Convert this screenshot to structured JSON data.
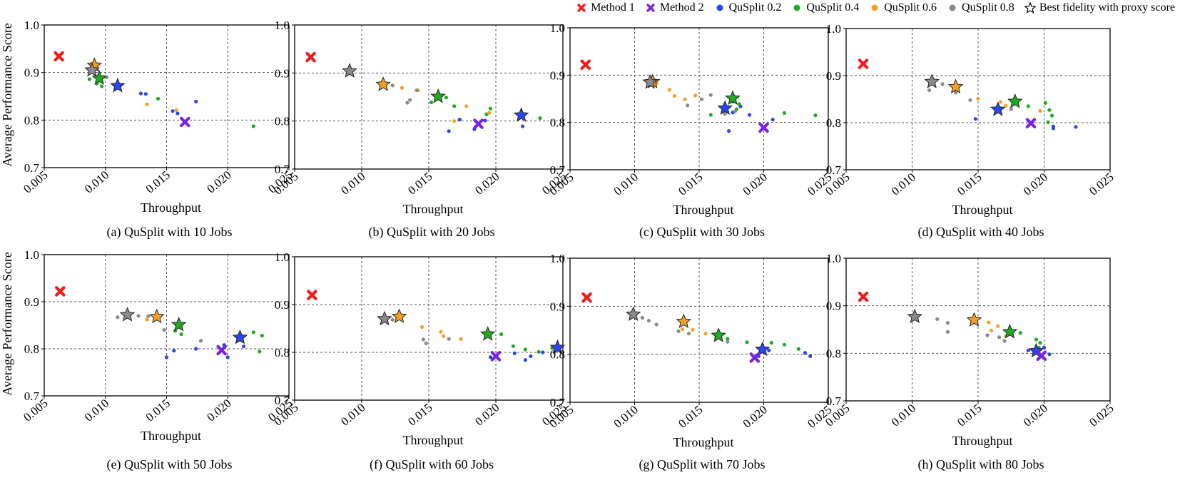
{
  "legend": {
    "items": [
      {
        "label": "Method 1",
        "color": "#f01c1c",
        "marker": "x"
      },
      {
        "label": "Method 2",
        "color": "#7b22e0",
        "marker": "x"
      },
      {
        "label": "QuSplit 0.2",
        "color": "#2a47ee",
        "marker": "dot"
      },
      {
        "label": "QuSplit 0.4",
        "color": "#20aa20",
        "marker": "dot"
      },
      {
        "label": "QuSplit 0.6",
        "color": "#f5a023",
        "marker": "dot"
      },
      {
        "label": "QuSplit 0.8",
        "color": "#8a8a8a",
        "marker": "dot"
      },
      {
        "label": "Best fidelity with proxy score",
        "color": "#ffffff",
        "marker": "star"
      }
    ]
  },
  "chart_data": [
    {
      "type": "scatter",
      "caption": "(a) QuSplit with 10 Jobs",
      "xlabel": "Throughput",
      "ylabel": "Average Performance Score",
      "xlim": [
        0.005,
        0.025
      ],
      "ylim": [
        0.7,
        1.0
      ],
      "xticks": [
        "0.005",
        "0.010",
        "0.015",
        "0.020",
        "0.025"
      ],
      "yticks": [
        "0.7",
        "0.8",
        "0.9",
        "1.0"
      ],
      "grid": true,
      "method1": [
        0.0062,
        0.934
      ],
      "method2": [
        0.0165,
        0.796
      ],
      "series": [
        {
          "name": "QuSplit 0.2",
          "x": [
            0.0129,
            0.0133,
            0.0155,
            0.0159,
            0.0174
          ],
          "y": [
            0.856,
            0.855,
            0.819,
            0.814,
            0.839
          ],
          "best": [
            0.011,
            0.872
          ]
        },
        {
          "name": "QuSplit 0.4",
          "x": [
            0.0087,
            0.0093,
            0.0097,
            0.0143,
            0.0221
          ],
          "y": [
            0.886,
            0.877,
            0.871,
            0.845,
            0.787
          ],
          "best": [
            0.0095,
            0.888
          ]
        },
        {
          "name": "QuSplit 0.6",
          "x": [
            0.0099,
            0.0134,
            0.0158
          ],
          "y": [
            0.891,
            0.833,
            0.821
          ],
          "best": [
            0.0091,
            0.915
          ]
        },
        {
          "name": "QuSplit 0.8",
          "x": [
            0.0096,
            0.0101
          ],
          "y": [
            0.883,
            0.89
          ],
          "best": [
            0.0089,
            0.905
          ]
        }
      ]
    },
    {
      "type": "scatter",
      "caption": "(b) QuSplit with 20 Jobs",
      "xlabel": "Throughput",
      "ylabel": "",
      "xlim": [
        0.005,
        0.025
      ],
      "ylim": [
        0.7,
        1.0
      ],
      "xticks": [
        "0.005",
        "0.010",
        "0.015",
        "0.020",
        "0.025"
      ],
      "yticks": [
        "0.7",
        "0.8",
        "0.9",
        "1.0"
      ],
      "grid": true,
      "method1": [
        0.0062,
        0.933
      ],
      "method2": [
        0.0187,
        0.794
      ],
      "series": [
        {
          "name": "QuSplit 0.2",
          "x": [
            0.0165,
            0.0173,
            0.0184,
            0.0192,
            0.022
          ],
          "y": [
            0.779,
            0.803,
            0.783,
            0.801,
            0.789
          ],
          "best": [
            0.0219,
            0.812
          ]
        },
        {
          "name": "QuSplit 0.4",
          "x": [
            0.0152,
            0.0163,
            0.0169,
            0.0193,
            0.0196,
            0.0233
          ],
          "y": [
            0.839,
            0.849,
            0.831,
            0.814,
            0.826,
            0.806
          ],
          "best": [
            0.0157,
            0.851
          ]
        },
        {
          "name": "QuSplit 0.6",
          "x": [
            0.013,
            0.0142,
            0.0169,
            0.0178,
            0.0195
          ],
          "y": [
            0.869,
            0.864,
            0.8,
            0.831,
            0.817
          ],
          "best": [
            0.0116,
            0.876
          ]
        },
        {
          "name": "QuSplit 0.8",
          "x": [
            0.0123,
            0.0134,
            0.0136,
            0.0141
          ],
          "y": [
            0.874,
            0.838,
            0.844,
            0.864
          ],
          "best": [
            0.0091,
            0.904
          ]
        }
      ]
    },
    {
      "type": "scatter",
      "caption": "(c) QuSplit with 30 Jobs",
      "xlabel": "Throughput",
      "ylabel": "",
      "xlim": [
        0.005,
        0.025
      ],
      "ylim": [
        0.7,
        1.0
      ],
      "xticks": [
        "0.005",
        "0.010",
        "0.015",
        "0.020",
        "0.025"
      ],
      "yticks": [
        "0.7",
        "0.8",
        "0.9",
        "1.0"
      ],
      "grid": true,
      "method1": [
        0.0062,
        0.922
      ],
      "method2": [
        0.02,
        0.789
      ],
      "series": [
        {
          "name": "QuSplit 0.2",
          "x": [
            0.0173,
            0.0176,
            0.0182,
            0.0189,
            0.0207
          ],
          "y": [
            0.782,
            0.821,
            0.834,
            0.816,
            0.806
          ],
          "best": [
            0.017,
            0.83
          ]
        },
        {
          "name": "QuSplit 0.4",
          "x": [
            0.0159,
            0.0176,
            0.0179,
            0.0181,
            0.0216,
            0.024
          ],
          "y": [
            0.816,
            0.844,
            0.828,
            0.839,
            0.82,
            0.815
          ],
          "best": [
            0.0176,
            0.851
          ]
        },
        {
          "name": "QuSplit 0.6",
          "x": [
            0.0117,
            0.0127,
            0.0131,
            0.0139,
            0.0147
          ],
          "y": [
            0.883,
            0.869,
            0.856,
            0.849,
            0.857
          ],
          "best": [
            0.0114,
            0.886
          ]
        },
        {
          "name": "QuSplit 0.8",
          "x": [
            0.0141,
            0.0152,
            0.0159,
            0.017,
            0.0178
          ],
          "y": [
            0.836,
            0.849,
            0.858,
            0.818,
            0.824
          ],
          "best": [
            0.0112,
            0.885
          ]
        }
      ]
    },
    {
      "type": "scatter",
      "caption": "(d) QuSplit with 40 Jobs",
      "xlabel": "Throughput",
      "ylabel": "",
      "xlim": [
        0.005,
        0.025
      ],
      "ylim": [
        0.7,
        1.0
      ],
      "xticks": [
        "0.005",
        "0.010",
        "0.015",
        "0.020",
        "0.025"
      ],
      "yticks": [
        "0.7",
        "0.8",
        "0.9",
        "1.0"
      ],
      "grid": true,
      "method1": [
        0.0063,
        0.925
      ],
      "method2": [
        0.019,
        0.799
      ],
      "series": [
        {
          "name": "QuSplit 0.2",
          "x": [
            0.0148,
            0.0207,
            0.0207,
            0.0224
          ],
          "y": [
            0.808,
            0.792,
            0.788,
            0.791
          ],
          "best": [
            0.0165,
            0.828
          ]
        },
        {
          "name": "QuSplit 0.4",
          "x": [
            0.0188,
            0.0201,
            0.0204,
            0.0206,
            0.0203
          ],
          "y": [
            0.835,
            0.842,
            0.827,
            0.815,
            0.801
          ],
          "best": [
            0.0178,
            0.845
          ]
        },
        {
          "name": "QuSplit 0.6",
          "x": [
            0.0134,
            0.015,
            0.0167,
            0.0171,
            0.0197
          ],
          "y": [
            0.868,
            0.851,
            0.844,
            0.836,
            0.825
          ],
          "best": [
            0.0133,
            0.876
          ]
        },
        {
          "name": "QuSplit 0.8",
          "x": [
            0.0113,
            0.0123,
            0.0133,
            0.0144,
            0.0175
          ],
          "y": [
            0.869,
            0.882,
            0.864,
            0.848,
            0.829
          ],
          "best": [
            0.0115,
            0.887
          ]
        }
      ]
    },
    {
      "type": "scatter",
      "caption": "(e) QuSplit with 50 Jobs",
      "xlabel": "Throughput",
      "ylabel": "Average Performance Score",
      "xlim": [
        0.005,
        0.025
      ],
      "ylim": [
        0.7,
        1.0
      ],
      "xticks": [
        "0.005",
        "0.010",
        "0.015",
        "0.020",
        "0.025"
      ],
      "yticks": [
        "0.7",
        "0.8",
        "0.9",
        "1.0"
      ],
      "grid": true,
      "method1": [
        0.0063,
        0.922
      ],
      "method2": [
        0.0195,
        0.797
      ],
      "series": [
        {
          "name": "QuSplit 0.2",
          "x": [
            0.015,
            0.0156,
            0.0174,
            0.0197,
            0.02,
            0.0213
          ],
          "y": [
            0.782,
            0.796,
            0.8,
            0.808,
            0.782,
            0.805
          ],
          "best": [
            0.021,
            0.824
          ]
        },
        {
          "name": "QuSplit 0.4",
          "x": [
            0.0157,
            0.0162,
            0.0221,
            0.0228,
            0.0226
          ],
          "y": [
            0.838,
            0.831,
            0.835,
            0.828,
            0.794
          ],
          "best": [
            0.016,
            0.851
          ]
        },
        {
          "name": "QuSplit 0.6",
          "x": [
            0.0134,
            0.0141
          ],
          "y": [
            0.862,
            0.863
          ],
          "best": [
            0.0142,
            0.868
          ]
        },
        {
          "name": "QuSplit 0.8",
          "x": [
            0.011,
            0.0127,
            0.0135,
            0.0148,
            0.0178
          ],
          "y": [
            0.867,
            0.87,
            0.869,
            0.84,
            0.817
          ],
          "best": [
            0.0118,
            0.872
          ]
        }
      ]
    },
    {
      "type": "scatter",
      "caption": "(f) QuSplit with 60 Jobs",
      "xlabel": "Throughput",
      "ylabel": "",
      "xlim": [
        0.005,
        0.025
      ],
      "ylim": [
        0.7,
        1.0
      ],
      "xticks": [
        "0.005",
        "0.010",
        "0.015",
        "0.020",
        "0.025"
      ],
      "yticks": [
        "0.7",
        "0.8",
        "0.9",
        "1.0"
      ],
      "grid": true,
      "method1": [
        0.0063,
        0.92
      ],
      "method2": [
        0.02,
        0.792
      ],
      "series": [
        {
          "name": "QuSplit 0.2",
          "x": [
            0.0196,
            0.0214,
            0.0222,
            0.0226,
            0.0235
          ],
          "y": [
            0.79,
            0.798,
            0.784,
            0.792,
            0.8
          ],
          "best": [
            0.0246,
            0.81
          ]
        },
        {
          "name": "QuSplit 0.4",
          "x": [
            0.0204,
            0.0213,
            0.0222,
            0.0232,
            0.0242
          ],
          "y": [
            0.838,
            0.813,
            0.806,
            0.801,
            0.809
          ],
          "best": [
            0.0194,
            0.838
          ]
        },
        {
          "name": "QuSplit 0.6",
          "x": [
            0.0145,
            0.0159,
            0.0161,
            0.0174
          ],
          "y": [
            0.853,
            0.843,
            0.834,
            0.828
          ],
          "best": [
            0.0128,
            0.875
          ]
        },
        {
          "name": "QuSplit 0.8",
          "x": [
            0.0123,
            0.0146,
            0.0148,
            0.0165
          ],
          "y": [
            0.868,
            0.827,
            0.819,
            0.828
          ],
          "best": [
            0.0117,
            0.87
          ]
        }
      ]
    },
    {
      "type": "scatter",
      "caption": "(g) QuSplit with 70 Jobs",
      "xlabel": "Throughput",
      "ylabel": "",
      "xlim": [
        0.005,
        0.025
      ],
      "ylim": [
        0.7,
        1.0
      ],
      "xticks": [
        "0.005",
        "0.010",
        "0.015",
        "0.020",
        "0.025"
      ],
      "yticks": [
        "0.7",
        "0.8",
        "0.9",
        "1.0"
      ],
      "grid": true,
      "method1": [
        0.0063,
        0.918
      ],
      "method2": [
        0.0193,
        0.793
      ],
      "series": [
        {
          "name": "QuSplit 0.2",
          "x": [
            0.0196,
            0.0204,
            0.0232,
            0.0236
          ],
          "y": [
            0.796,
            0.808,
            0.803,
            0.796
          ],
          "best": [
            0.0199,
            0.81
          ]
        },
        {
          "name": "QuSplit 0.4",
          "x": [
            0.0172,
            0.0187,
            0.0206,
            0.0216,
            0.0227
          ],
          "y": [
            0.832,
            0.825,
            0.824,
            0.82,
            0.811
          ],
          "best": [
            0.0165,
            0.839
          ]
        },
        {
          "name": "QuSplit 0.6",
          "x": [
            0.0137,
            0.0145,
            0.0155,
            0.0163
          ],
          "y": [
            0.852,
            0.851,
            0.843,
            0.834
          ],
          "best": [
            0.0138,
            0.868
          ]
        },
        {
          "name": "QuSplit 0.8",
          "x": [
            0.0106,
            0.0111,
            0.0117,
            0.0134,
            0.0142,
            0.0172
          ],
          "y": [
            0.876,
            0.87,
            0.862,
            0.848,
            0.843,
            0.826
          ],
          "best": [
            0.0099,
            0.883
          ]
        }
      ]
    },
    {
      "type": "scatter",
      "caption": "(h) QuSplit with 80 Jobs",
      "xlabel": "Throughput",
      "ylabel": "",
      "xlim": [
        0.005,
        0.025
      ],
      "ylim": [
        0.7,
        1.0
      ],
      "xticks": [
        "0.005",
        "0.010",
        "0.015",
        "0.020",
        "0.025"
      ],
      "yticks": [
        "0.7",
        "0.8",
        "0.9",
        "1.0"
      ],
      "grid": true,
      "method1": [
        0.0063,
        0.919
      ],
      "method2": [
        0.0198,
        0.795
      ],
      "series": [
        {
          "name": "QuSplit 0.2",
          "x": [
            0.0188,
            0.0195,
            0.02,
            0.0204
          ],
          "y": [
            0.806,
            0.801,
            0.812,
            0.798
          ],
          "best": [
            0.0194,
            0.805
          ]
        },
        {
          "name": "QuSplit 0.4",
          "x": [
            0.0182,
            0.0194,
            0.0197,
            0.0196
          ],
          "y": [
            0.843,
            0.829,
            0.822,
            0.812
          ],
          "best": [
            0.0174,
            0.845
          ]
        },
        {
          "name": "QuSplit 0.6",
          "x": [
            0.0158,
            0.016,
            0.0165,
            0.0171
          ],
          "y": [
            0.865,
            0.848,
            0.857,
            0.836
          ],
          "best": [
            0.0147,
            0.87
          ]
        },
        {
          "name": "QuSplit 0.8",
          "x": [
            0.0119,
            0.0127,
            0.0127,
            0.0157,
            0.0166,
            0.017
          ],
          "y": [
            0.872,
            0.864,
            0.845,
            0.838,
            0.834,
            0.826
          ],
          "best": [
            0.0102,
            0.877
          ]
        }
      ]
    }
  ]
}
